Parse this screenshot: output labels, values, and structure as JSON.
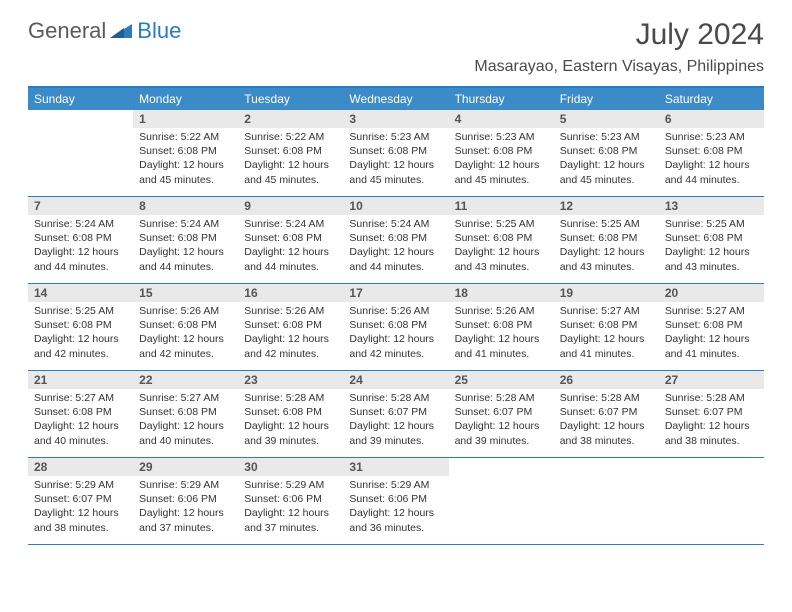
{
  "logo": {
    "part1": "General",
    "part2": "Blue"
  },
  "header": {
    "title": "July 2024",
    "location": "Masarayao, Eastern Visayas, Philippines"
  },
  "colors": {
    "header_bar": "#3b8bc9",
    "border": "#2b7bbf",
    "daynum_bg": "#e9e9e9",
    "text": "#333333"
  },
  "weekdays": [
    "Sunday",
    "Monday",
    "Tuesday",
    "Wednesday",
    "Thursday",
    "Friday",
    "Saturday"
  ],
  "weeks": [
    [
      {
        "n": "",
        "sr": "",
        "ss": "",
        "dl": ""
      },
      {
        "n": "1",
        "sr": "Sunrise: 5:22 AM",
        "ss": "Sunset: 6:08 PM",
        "dl": "Daylight: 12 hours and 45 minutes."
      },
      {
        "n": "2",
        "sr": "Sunrise: 5:22 AM",
        "ss": "Sunset: 6:08 PM",
        "dl": "Daylight: 12 hours and 45 minutes."
      },
      {
        "n": "3",
        "sr": "Sunrise: 5:23 AM",
        "ss": "Sunset: 6:08 PM",
        "dl": "Daylight: 12 hours and 45 minutes."
      },
      {
        "n": "4",
        "sr": "Sunrise: 5:23 AM",
        "ss": "Sunset: 6:08 PM",
        "dl": "Daylight: 12 hours and 45 minutes."
      },
      {
        "n": "5",
        "sr": "Sunrise: 5:23 AM",
        "ss": "Sunset: 6:08 PM",
        "dl": "Daylight: 12 hours and 45 minutes."
      },
      {
        "n": "6",
        "sr": "Sunrise: 5:23 AM",
        "ss": "Sunset: 6:08 PM",
        "dl": "Daylight: 12 hours and 44 minutes."
      }
    ],
    [
      {
        "n": "7",
        "sr": "Sunrise: 5:24 AM",
        "ss": "Sunset: 6:08 PM",
        "dl": "Daylight: 12 hours and 44 minutes."
      },
      {
        "n": "8",
        "sr": "Sunrise: 5:24 AM",
        "ss": "Sunset: 6:08 PM",
        "dl": "Daylight: 12 hours and 44 minutes."
      },
      {
        "n": "9",
        "sr": "Sunrise: 5:24 AM",
        "ss": "Sunset: 6:08 PM",
        "dl": "Daylight: 12 hours and 44 minutes."
      },
      {
        "n": "10",
        "sr": "Sunrise: 5:24 AM",
        "ss": "Sunset: 6:08 PM",
        "dl": "Daylight: 12 hours and 44 minutes."
      },
      {
        "n": "11",
        "sr": "Sunrise: 5:25 AM",
        "ss": "Sunset: 6:08 PM",
        "dl": "Daylight: 12 hours and 43 minutes."
      },
      {
        "n": "12",
        "sr": "Sunrise: 5:25 AM",
        "ss": "Sunset: 6:08 PM",
        "dl": "Daylight: 12 hours and 43 minutes."
      },
      {
        "n": "13",
        "sr": "Sunrise: 5:25 AM",
        "ss": "Sunset: 6:08 PM",
        "dl": "Daylight: 12 hours and 43 minutes."
      }
    ],
    [
      {
        "n": "14",
        "sr": "Sunrise: 5:25 AM",
        "ss": "Sunset: 6:08 PM",
        "dl": "Daylight: 12 hours and 42 minutes."
      },
      {
        "n": "15",
        "sr": "Sunrise: 5:26 AM",
        "ss": "Sunset: 6:08 PM",
        "dl": "Daylight: 12 hours and 42 minutes."
      },
      {
        "n": "16",
        "sr": "Sunrise: 5:26 AM",
        "ss": "Sunset: 6:08 PM",
        "dl": "Daylight: 12 hours and 42 minutes."
      },
      {
        "n": "17",
        "sr": "Sunrise: 5:26 AM",
        "ss": "Sunset: 6:08 PM",
        "dl": "Daylight: 12 hours and 42 minutes."
      },
      {
        "n": "18",
        "sr": "Sunrise: 5:26 AM",
        "ss": "Sunset: 6:08 PM",
        "dl": "Daylight: 12 hours and 41 minutes."
      },
      {
        "n": "19",
        "sr": "Sunrise: 5:27 AM",
        "ss": "Sunset: 6:08 PM",
        "dl": "Daylight: 12 hours and 41 minutes."
      },
      {
        "n": "20",
        "sr": "Sunrise: 5:27 AM",
        "ss": "Sunset: 6:08 PM",
        "dl": "Daylight: 12 hours and 41 minutes."
      }
    ],
    [
      {
        "n": "21",
        "sr": "Sunrise: 5:27 AM",
        "ss": "Sunset: 6:08 PM",
        "dl": "Daylight: 12 hours and 40 minutes."
      },
      {
        "n": "22",
        "sr": "Sunrise: 5:27 AM",
        "ss": "Sunset: 6:08 PM",
        "dl": "Daylight: 12 hours and 40 minutes."
      },
      {
        "n": "23",
        "sr": "Sunrise: 5:28 AM",
        "ss": "Sunset: 6:08 PM",
        "dl": "Daylight: 12 hours and 39 minutes."
      },
      {
        "n": "24",
        "sr": "Sunrise: 5:28 AM",
        "ss": "Sunset: 6:07 PM",
        "dl": "Daylight: 12 hours and 39 minutes."
      },
      {
        "n": "25",
        "sr": "Sunrise: 5:28 AM",
        "ss": "Sunset: 6:07 PM",
        "dl": "Daylight: 12 hours and 39 minutes."
      },
      {
        "n": "26",
        "sr": "Sunrise: 5:28 AM",
        "ss": "Sunset: 6:07 PM",
        "dl": "Daylight: 12 hours and 38 minutes."
      },
      {
        "n": "27",
        "sr": "Sunrise: 5:28 AM",
        "ss": "Sunset: 6:07 PM",
        "dl": "Daylight: 12 hours and 38 minutes."
      }
    ],
    [
      {
        "n": "28",
        "sr": "Sunrise: 5:29 AM",
        "ss": "Sunset: 6:07 PM",
        "dl": "Daylight: 12 hours and 38 minutes."
      },
      {
        "n": "29",
        "sr": "Sunrise: 5:29 AM",
        "ss": "Sunset: 6:06 PM",
        "dl": "Daylight: 12 hours and 37 minutes."
      },
      {
        "n": "30",
        "sr": "Sunrise: 5:29 AM",
        "ss": "Sunset: 6:06 PM",
        "dl": "Daylight: 12 hours and 37 minutes."
      },
      {
        "n": "31",
        "sr": "Sunrise: 5:29 AM",
        "ss": "Sunset: 6:06 PM",
        "dl": "Daylight: 12 hours and 36 minutes."
      },
      {
        "n": "",
        "sr": "",
        "ss": "",
        "dl": ""
      },
      {
        "n": "",
        "sr": "",
        "ss": "",
        "dl": ""
      },
      {
        "n": "",
        "sr": "",
        "ss": "",
        "dl": ""
      }
    ]
  ]
}
